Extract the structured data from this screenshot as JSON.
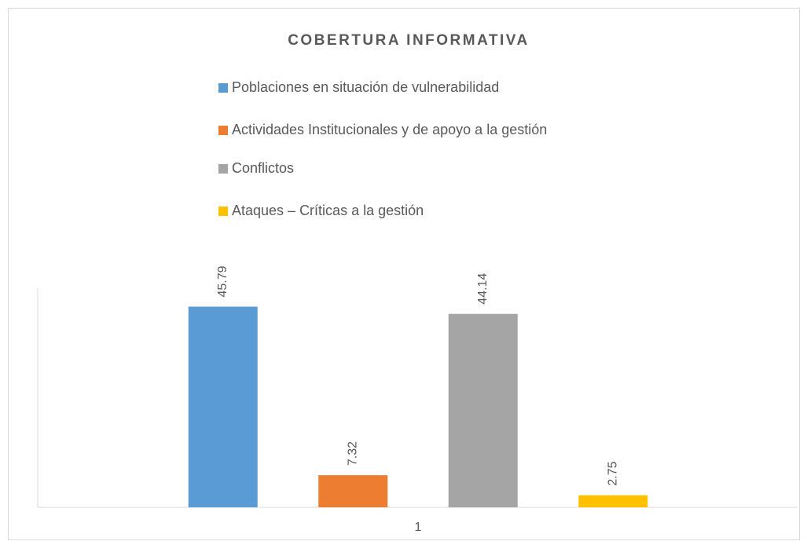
{
  "chart_data": {
    "type": "bar",
    "title": "COBERTURA INFORMATIVA",
    "categories": [
      "1"
    ],
    "series": [
      {
        "name": "Poblaciones en situación de vulnerabilidad",
        "color": "#5b9bd5",
        "values": [
          45.79
        ]
      },
      {
        "name": "Actividades Institucionales y de apoyo a la gestión",
        "color": "#ed7d31",
        "values": [
          7.32
        ]
      },
      {
        "name": "Conflictos",
        "color": "#a5a5a5",
        "values": [
          44.14
        ]
      },
      {
        "name": "Ataques – Críticas a la gestión",
        "color": "#ffc000",
        "values": [
          2.75
        ]
      }
    ],
    "ylim": [
      0,
      50
    ],
    "legend": "top"
  }
}
